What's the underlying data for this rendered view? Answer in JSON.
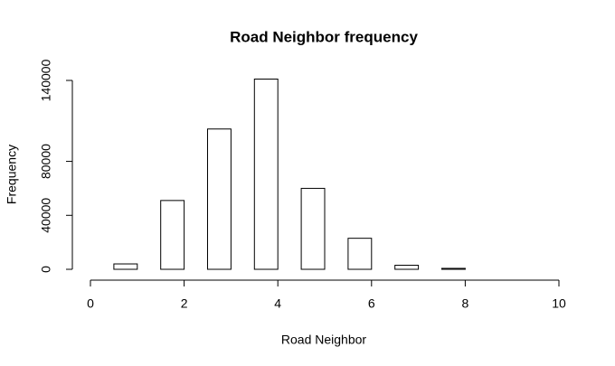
{
  "chart_data": {
    "type": "histogram",
    "title": "Road Neighbor frequency",
    "x_label": "Road Neighbor",
    "y_label": "Frequency",
    "bins": [
      0,
      0.5,
      1,
      1.5,
      2,
      2.5,
      3,
      3.5,
      4,
      4.5,
      5,
      5.5,
      6,
      6.5,
      7,
      7.5,
      8,
      8.5,
      9,
      9.5,
      10
    ],
    "values": [
      0,
      4000,
      0,
      51000,
      0,
      104000,
      0,
      141000,
      0,
      60000,
      0,
      23000,
      0,
      3000,
      0,
      700,
      0,
      0,
      0,
      0
    ],
    "color": "#ffffff",
    "edgecolor": "#000000",
    "xlim": [
      0,
      10
    ],
    "xticks": [
      0,
      2,
      4,
      6,
      8,
      10
    ],
    "ylim": [
      0,
      141000
    ],
    "yticks": [
      0,
      40000,
      80000,
      140000
    ]
  }
}
